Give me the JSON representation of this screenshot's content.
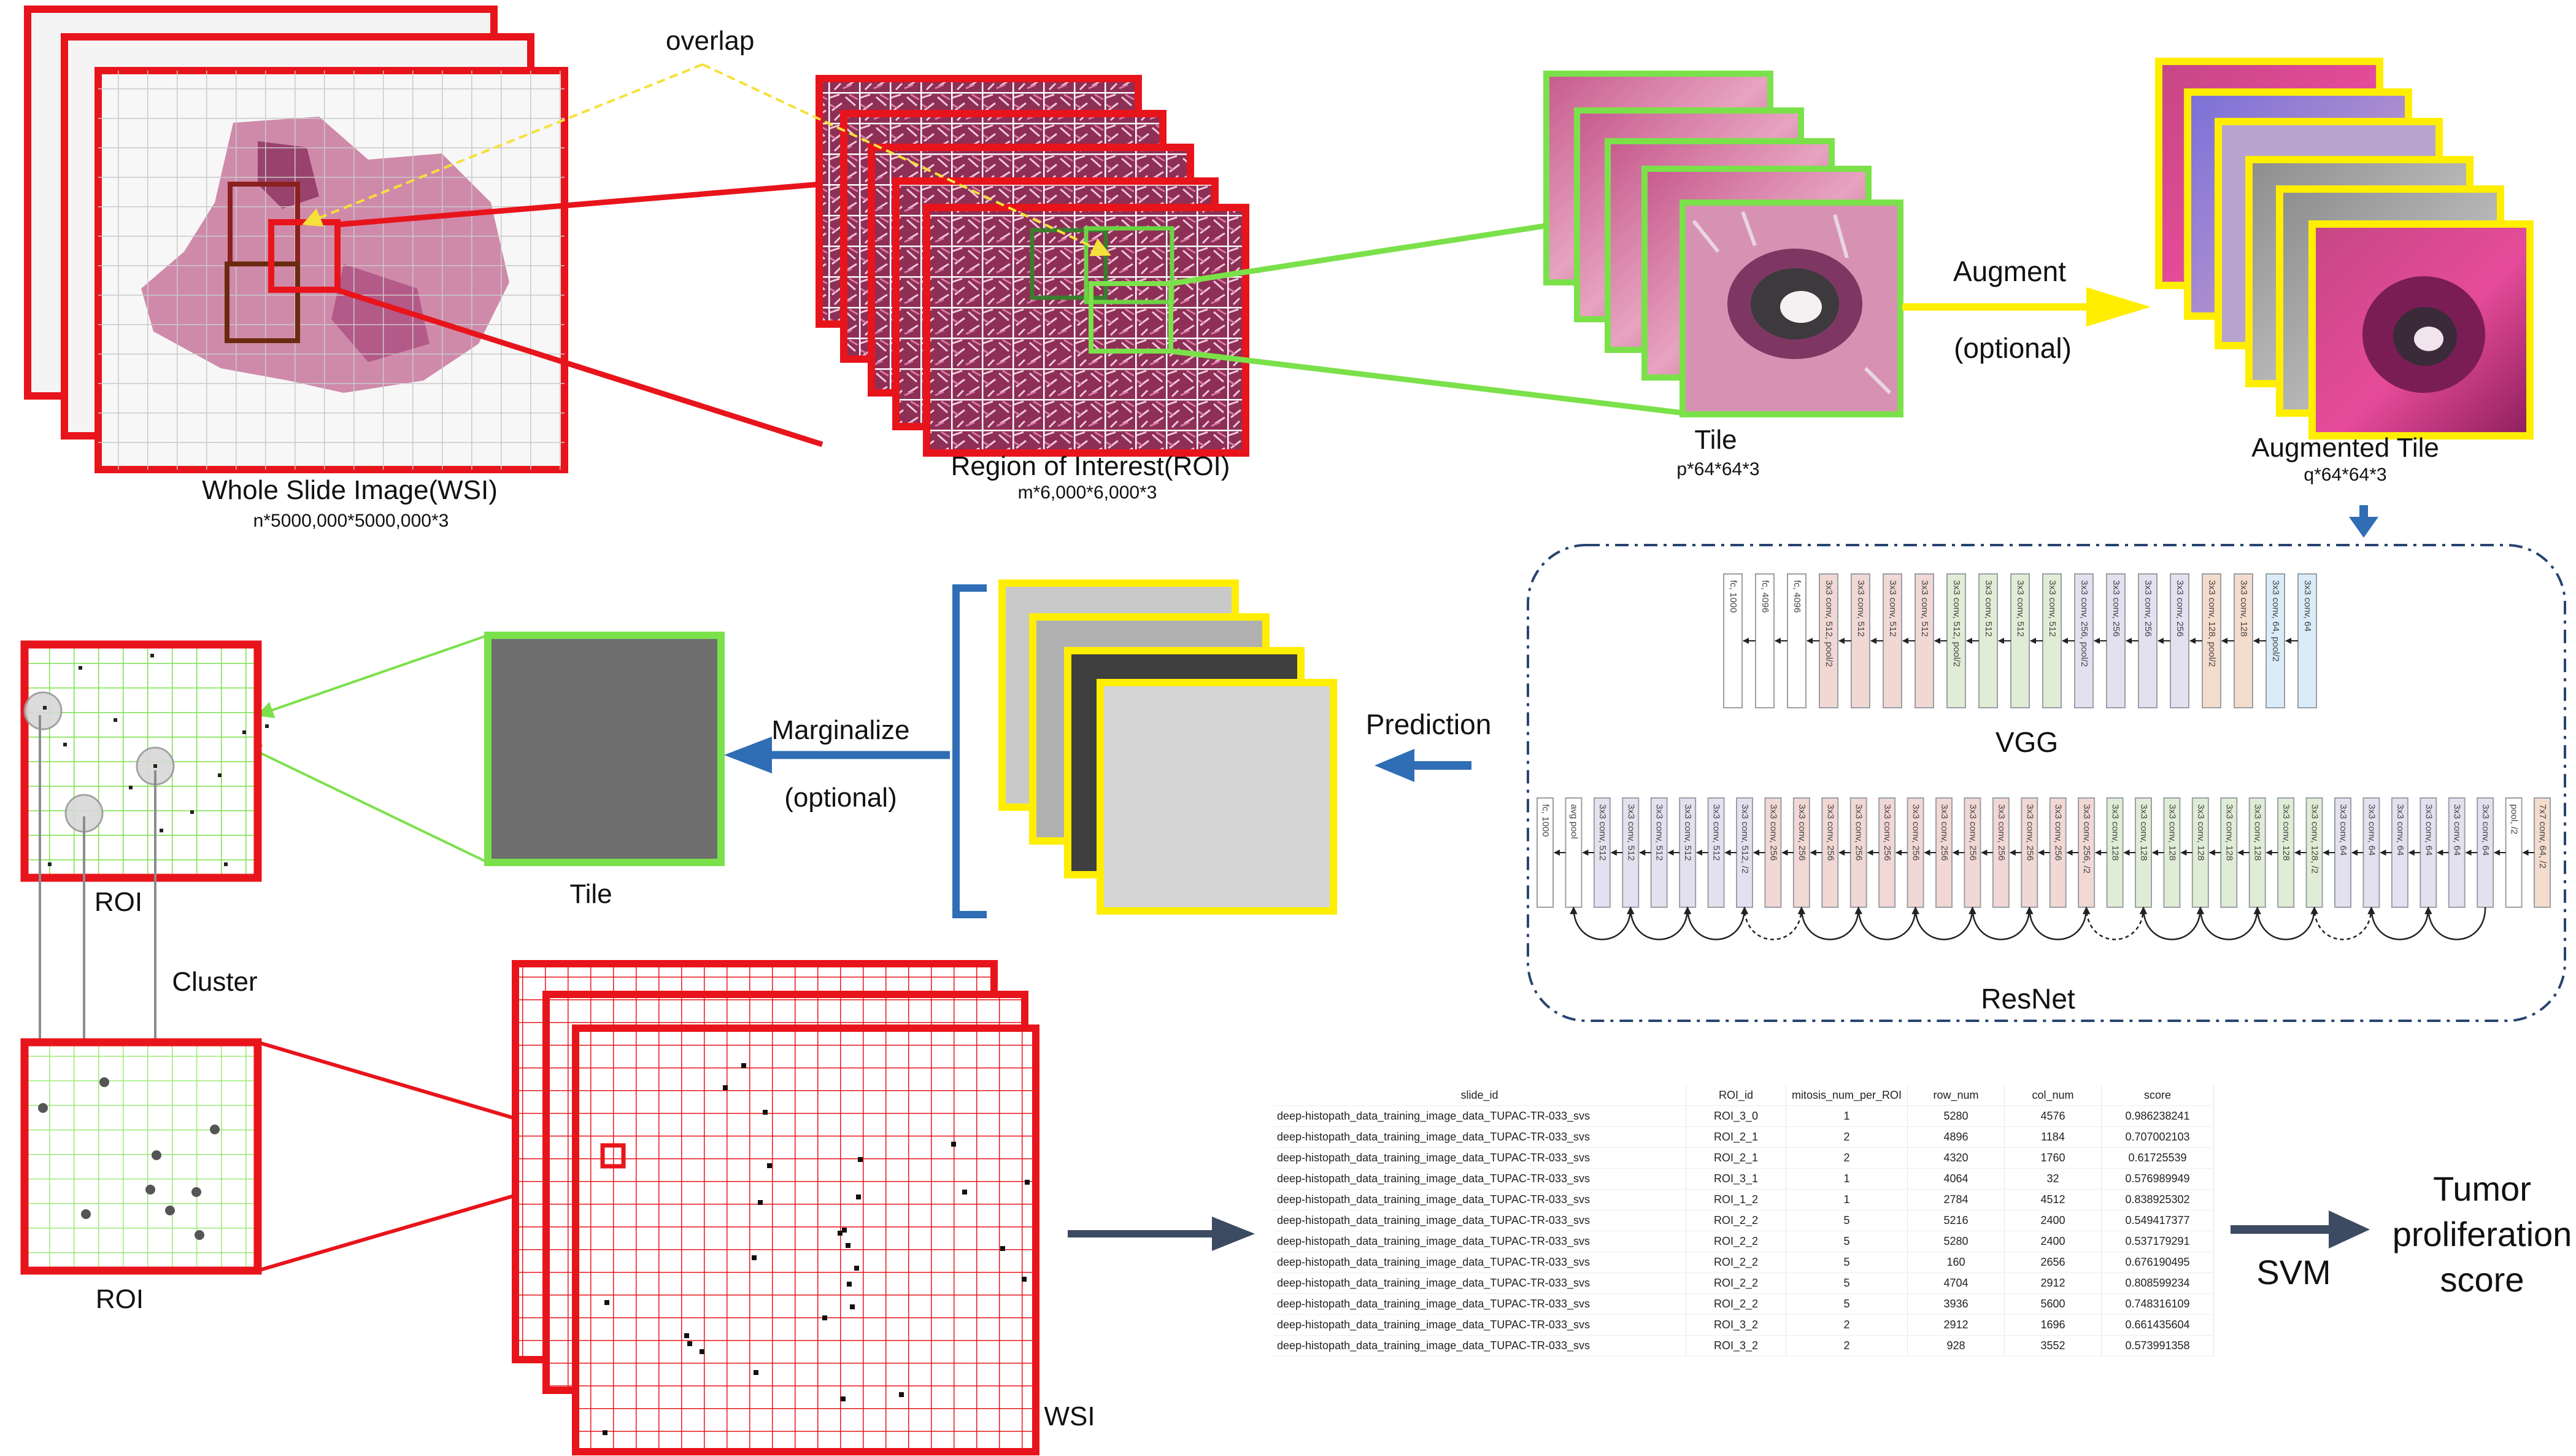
{
  "labels": {
    "overlap": "overlap",
    "wsi_title": "Whole Slide Image(WSI)",
    "wsi_dims": "n*5000,000*5000,000*3",
    "roi_title": "Region of Interest(ROI)",
    "roi_dims": "m*6,000*6,000*3",
    "tile_title": "Tile",
    "tile_dims": "p*64*64*3",
    "augment": "Augment",
    "optional_1": "(optional)",
    "aug_tile_title": "Augmented Tile",
    "aug_tile_dims": "q*64*64*3",
    "vgg": "VGG",
    "resnet": "ResNet",
    "prediction": "Prediction",
    "marginalize": "Marginalize",
    "optional_2": "(optional)",
    "tile_small": "Tile",
    "roi_left_top": "ROI",
    "cluster": "Cluster",
    "roi_left_bottom": "ROI",
    "wsi_bottom": "WSI",
    "svm": "SVM",
    "tumor_line1": "Tumor",
    "tumor_line2": "proliferation",
    "tumor_line3": "score"
  },
  "vgg_layers": [
    "3x3 conv, 64",
    "3x3 conv, 64, pool/2",
    "3x3 conv, 128",
    "3x3 conv, 128, pool/2",
    "3x3 conv, 256",
    "3x3 conv, 256",
    "3x3 conv, 256",
    "3x3 conv, 256, pool/2",
    "3x3 conv, 512",
    "3x3 conv, 512",
    "3x3 conv, 512",
    "3x3 conv, 512, pool/2",
    "3x3 conv, 512",
    "3x3 conv, 512",
    "3x3 conv, 512",
    "3x3 conv, 512, pool/2",
    "fc, 4096",
    "fc, 4096",
    "fc, 1000"
  ],
  "resnet_layers": [
    "7x7 conv, 64, /2",
    "pool, /2",
    "3x3 conv, 64",
    "3x3 conv, 64",
    "3x3 conv, 64",
    "3x3 conv, 64",
    "3x3 conv, 64",
    "3x3 conv, 64",
    "3x3 conv, 128, /2",
    "3x3 conv, 128",
    "3x3 conv, 128",
    "3x3 conv, 128",
    "3x3 conv, 128",
    "3x3 conv, 128",
    "3x3 conv, 128",
    "3x3 conv, 128",
    "3x3 conv, 256, /2",
    "3x3 conv, 256",
    "3x3 conv, 256",
    "3x3 conv, 256",
    "3x3 conv, 256",
    "3x3 conv, 256",
    "3x3 conv, 256",
    "3x3 conv, 256",
    "3x3 conv, 256",
    "3x3 conv, 256",
    "3x3 conv, 256",
    "3x3 conv, 256",
    "3x3 conv, 512, /2",
    "3x3 conv, 512",
    "3x3 conv, 512",
    "3x3 conv, 512",
    "3x3 conv, 512",
    "3x3 conv, 512",
    "avg pool",
    "fc, 1000"
  ],
  "table": {
    "headers": [
      "slide_id",
      "ROI_id",
      "mitosis_num_per_ROI",
      "row_num",
      "col_num",
      "score"
    ],
    "rows": [
      [
        "deep-histopath_data_training_image_data_TUPAC-TR-033_svs",
        "ROI_3_0",
        "1",
        "5280",
        "4576",
        "0.986238241"
      ],
      [
        "deep-histopath_data_training_image_data_TUPAC-TR-033_svs",
        "ROI_2_1",
        "2",
        "4896",
        "1184",
        "0.707002103"
      ],
      [
        "deep-histopath_data_training_image_data_TUPAC-TR-033_svs",
        "ROI_2_1",
        "2",
        "4320",
        "1760",
        "0.61725539"
      ],
      [
        "deep-histopath_data_training_image_data_TUPAC-TR-033_svs",
        "ROI_3_1",
        "1",
        "4064",
        "32",
        "0.576989949"
      ],
      [
        "deep-histopath_data_training_image_data_TUPAC-TR-033_svs",
        "ROI_1_2",
        "1",
        "2784",
        "4512",
        "0.838925302"
      ],
      [
        "deep-histopath_data_training_image_data_TUPAC-TR-033_svs",
        "ROI_2_2",
        "5",
        "5216",
        "2400",
        "0.549417377"
      ],
      [
        "deep-histopath_data_training_image_data_TUPAC-TR-033_svs",
        "ROI_2_2",
        "5",
        "5280",
        "2400",
        "0.537179291"
      ],
      [
        "deep-histopath_data_training_image_data_TUPAC-TR-033_svs",
        "ROI_2_2",
        "5",
        "160",
        "2656",
        "0.676190495"
      ],
      [
        "deep-histopath_data_training_image_data_TUPAC-TR-033_svs",
        "ROI_2_2",
        "5",
        "4704",
        "2912",
        "0.808599234"
      ],
      [
        "deep-histopath_data_training_image_data_TUPAC-TR-033_svs",
        "ROI_2_2",
        "5",
        "3936",
        "5600",
        "0.748316109"
      ],
      [
        "deep-histopath_data_training_image_data_TUPAC-TR-033_svs",
        "ROI_3_2",
        "2",
        "2912",
        "1696",
        "0.661435604"
      ],
      [
        "deep-histopath_data_training_image_data_TUPAC-TR-033_svs",
        "ROI_3_2",
        "2",
        "928",
        "3552",
        "0.573991358"
      ]
    ]
  },
  "colors": {
    "wsi_border": "#e8141b",
    "tile_border": "#7be14a",
    "aug_border": "#ffee00",
    "arrow_blue": "#2f6db5",
    "arrow_dark": "#3c4b61",
    "overlap_line": "#f6e03a",
    "panel_dash": "#28446f",
    "vgg_block_colors": [
      "#d9ecf7",
      "#e3e1ef",
      "#f4dccd",
      "#e0edd6",
      "#f1d8d4",
      "#e8e8f2"
    ]
  }
}
